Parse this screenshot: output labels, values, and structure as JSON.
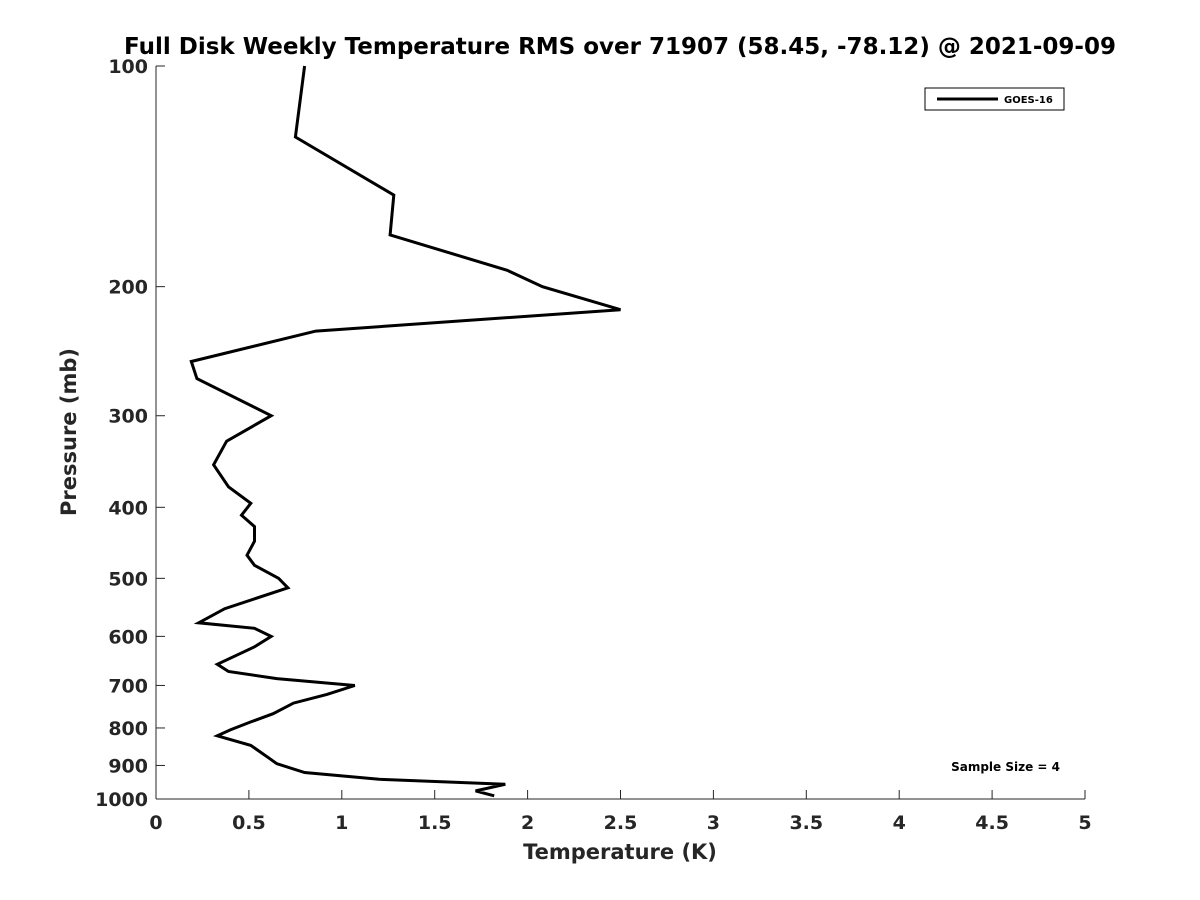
{
  "chart_data": {
    "type": "line",
    "title": "Full Disk Weekly Temperature RMS over 71907 (58.45, -78.12) @ 2021-09-09",
    "xlabel": "Temperature (K)",
    "ylabel": "Pressure (mb)",
    "xlim": [
      0,
      5
    ],
    "ylim": [
      100,
      1000
    ],
    "y_scale": "log",
    "y_reversed": true,
    "grid": false,
    "legend_position": "top-right",
    "xticks": [
      "0",
      "0.5",
      "1",
      "1.5",
      "2",
      "2.5",
      "3",
      "3.5",
      "4",
      "4.5",
      "5"
    ],
    "yticks": [
      "100",
      "200",
      "300",
      "400",
      "500",
      "600",
      "700",
      "800",
      "900",
      "1000"
    ],
    "series": [
      {
        "name": "GOES-16",
        "color": "#000000",
        "points": [
          [
            0.8,
            100
          ],
          [
            0.75,
            125
          ],
          [
            1.28,
            150
          ],
          [
            1.26,
            170
          ],
          [
            1.89,
            190
          ],
          [
            2.08,
            200
          ],
          [
            2.5,
            215
          ],
          [
            0.86,
            230
          ],
          [
            0.19,
            253
          ],
          [
            0.22,
            267
          ],
          [
            0.62,
            300
          ],
          [
            0.38,
            325
          ],
          [
            0.31,
            350
          ],
          [
            0.39,
            375
          ],
          [
            0.51,
            395
          ],
          [
            0.46,
            410
          ],
          [
            0.53,
            425
          ],
          [
            0.53,
            445
          ],
          [
            0.49,
            465
          ],
          [
            0.53,
            480
          ],
          [
            0.66,
            500
          ],
          [
            0.71,
            515
          ],
          [
            0.37,
            550
          ],
          [
            0.23,
            575
          ],
          [
            0.53,
            585
          ],
          [
            0.62,
            600
          ],
          [
            0.53,
            620
          ],
          [
            0.33,
            655
          ],
          [
            0.39,
            670
          ],
          [
            0.65,
            685
          ],
          [
            1.07,
            700
          ],
          [
            0.92,
            720
          ],
          [
            0.74,
            740
          ],
          [
            0.63,
            765
          ],
          [
            0.51,
            785
          ],
          [
            0.4,
            805
          ],
          [
            0.33,
            820
          ],
          [
            0.51,
            845
          ],
          [
            0.61,
            880
          ],
          [
            0.65,
            895
          ],
          [
            0.8,
            920
          ],
          [
            1.2,
            940
          ],
          [
            1.88,
            955
          ],
          [
            1.72,
            975
          ],
          [
            1.82,
            990
          ]
        ]
      }
    ],
    "annotation": "Sample Size = 4"
  }
}
